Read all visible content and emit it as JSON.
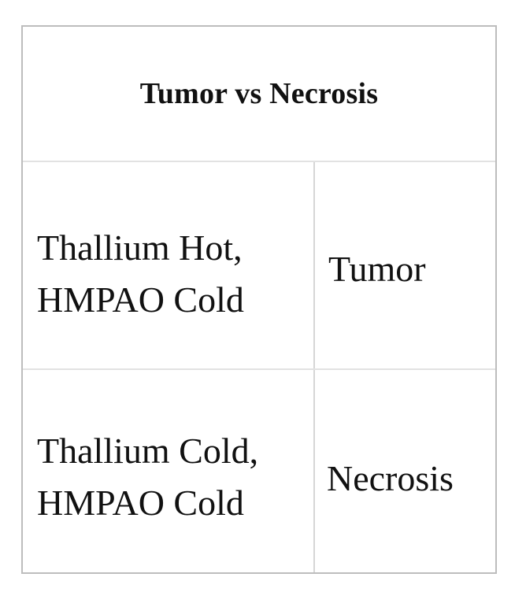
{
  "table": {
    "title": "Tumor vs Necrosis",
    "rows": [
      {
        "condition_line1": "Thallium Hot,",
        "condition_line2": "HMPAO Cold",
        "result": "Tumor"
      },
      {
        "condition_line1": "Thallium Cold,",
        "condition_line2": "HMPAO Cold",
        "result": "Necrosis"
      }
    ]
  }
}
